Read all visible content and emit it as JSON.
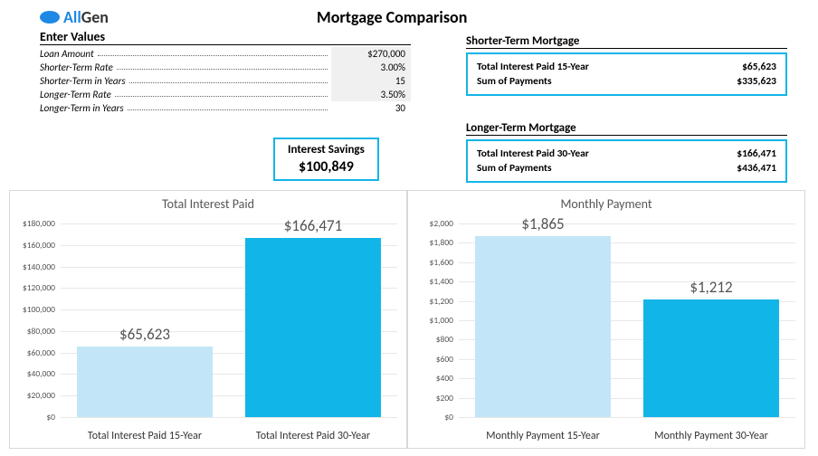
{
  "logo": {
    "all": "All",
    "gen": "Gen"
  },
  "title": "Mortgage Comparison",
  "enterValues": {
    "header": "Enter Values",
    "rows": [
      {
        "label": "Loan Amount",
        "value": "$270,000",
        "shaded": true
      },
      {
        "label": "Shorter-Term Rate",
        "value": "3.00%",
        "shaded": true
      },
      {
        "label": "Shorter-Term in Years",
        "value": "15",
        "shaded": true
      },
      {
        "label": "Longer-Term Rate",
        "value": "3.50%",
        "shaded": true
      },
      {
        "label": "Longer-Term in Years",
        "value": "30",
        "shaded": false
      }
    ]
  },
  "savings": {
    "label": "Interest Savings",
    "value": "$100,849"
  },
  "shorter": {
    "header": "Shorter-Term Mortgage",
    "interest_label": "Total Interest Paid 15-Year",
    "interest_value": "$65,623",
    "sum_label": "Sum of Payments",
    "sum_value": "$335,623"
  },
  "longer": {
    "header": "Longer-Term Mortgage",
    "interest_label": "Total Interest Paid 30-Year",
    "interest_value": "$166,471",
    "sum_label": "Sum of Payments",
    "sum_value": "$436,471"
  },
  "chart_interest": {
    "title": "Total Interest Paid",
    "ymax": 180000,
    "ystep": 20000,
    "yformat": "dollar",
    "bars": [
      {
        "label": "Total Interest Paid 15-Year",
        "value": 65623,
        "display": "$65,623",
        "color": "#c2e6f7"
      },
      {
        "label": "Total Interest Paid 30-Year",
        "value": 166471,
        "display": "$166,471",
        "color": "#12b5e8"
      }
    ]
  },
  "chart_payment": {
    "title": "Monthly Payment",
    "ymax": 2000,
    "ystep": 200,
    "yformat": "dollar",
    "bars": [
      {
        "label": "Monthly Payment 15-Year",
        "value": 1865,
        "display": "$1,865",
        "color": "#c2e6f7"
      },
      {
        "label": "Monthly Payment 30-Year",
        "value": 1212,
        "display": "$1,212",
        "color": "#12b5e8"
      }
    ]
  }
}
